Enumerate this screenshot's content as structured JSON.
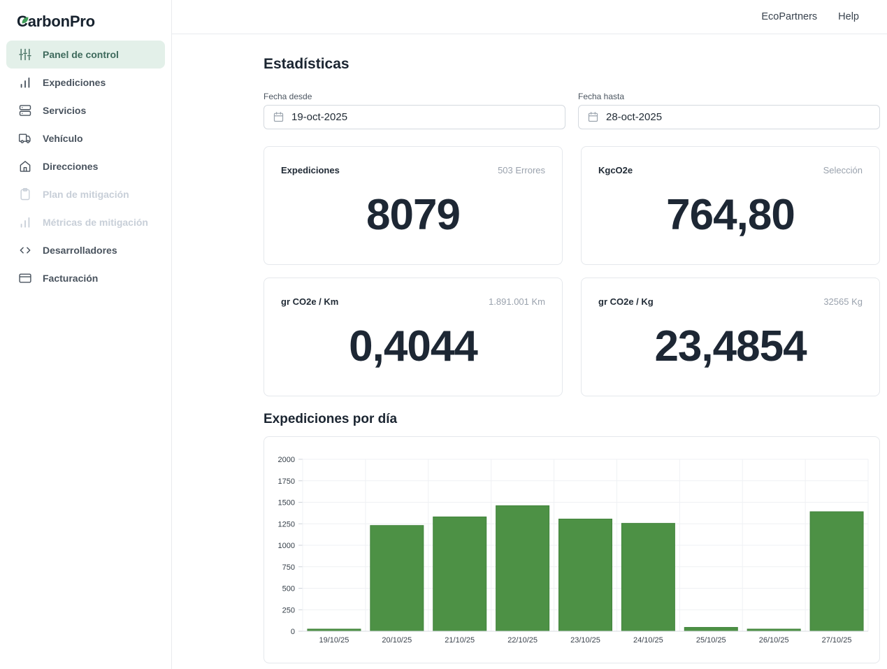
{
  "brand": {
    "name": "CarbonPro",
    "initial": "C",
    "rest": "arbonPro",
    "leaf_color": "#3f9d58"
  },
  "header": {
    "links": [
      {
        "label": "EcoPartners"
      },
      {
        "label": "Help"
      }
    ]
  },
  "sidebar": {
    "items": [
      {
        "label": "Panel de control",
        "icon": "sliders-icon",
        "active": true,
        "disabled": false
      },
      {
        "label": "Expediciones",
        "icon": "bar-chart-icon",
        "active": false,
        "disabled": false
      },
      {
        "label": "Servicios",
        "icon": "server-icon",
        "active": false,
        "disabled": false
      },
      {
        "label": "Vehículo",
        "icon": "truck-icon",
        "active": false,
        "disabled": false
      },
      {
        "label": "Direcciones",
        "icon": "home-icon",
        "active": false,
        "disabled": false
      },
      {
        "label": "Plan de mitigación",
        "icon": "clipboard-icon",
        "active": false,
        "disabled": true
      },
      {
        "label": "Métricas de mitigación",
        "icon": "bar-chart-icon",
        "active": false,
        "disabled": true
      },
      {
        "label": "Desarrolladores",
        "icon": "code-icon",
        "active": false,
        "disabled": false
      },
      {
        "label": "Facturación",
        "icon": "credit-card-icon",
        "active": false,
        "disabled": false
      }
    ]
  },
  "page": {
    "title": "Estadísticas",
    "chart_section_title": "Expediciones por día"
  },
  "filters": {
    "from": {
      "label": "Fecha desde",
      "value": "19-oct-2025",
      "icon": "calendar-icon"
    },
    "to": {
      "label": "Fecha hasta",
      "value": "28-oct-2025",
      "icon": "calendar-icon"
    }
  },
  "stats": [
    {
      "label": "Expediciones",
      "meta": "503 Errores",
      "value": "8079"
    },
    {
      "label": "KgcO2e",
      "meta": "Selección",
      "value": "764,80"
    },
    {
      "label": "gr CO2e / Km",
      "meta": "1.891.001 Km",
      "value": "0,4044"
    },
    {
      "label": "gr CO2e / Kg",
      "meta": "32565 Kg",
      "value": "23,4854"
    }
  ],
  "chart_data": {
    "type": "bar",
    "title": "Expediciones por día",
    "categories": [
      "19/10/25",
      "20/10/25",
      "21/10/25",
      "22/10/25",
      "23/10/25",
      "24/10/25",
      "25/10/25",
      "26/10/25",
      "27/10/25"
    ],
    "values": [
      25,
      1230,
      1330,
      1460,
      1305,
      1255,
      45,
      25,
      1390
    ],
    "xlabel": "",
    "ylabel": "",
    "ylim": [
      0,
      2000
    ],
    "ytick_step": 250,
    "bar_color": "#4d9145",
    "bar_border_color": "#41833c",
    "grid": true,
    "legend": "none"
  },
  "colors": {
    "sidebar_active_bg": "#e3f0e9",
    "sidebar_active_text": "#3e6a5c",
    "bar_green": "#4d9145",
    "heading_text": "#1b2531",
    "muted_text": "#9aa2ad",
    "border": "#e5e8ec"
  }
}
